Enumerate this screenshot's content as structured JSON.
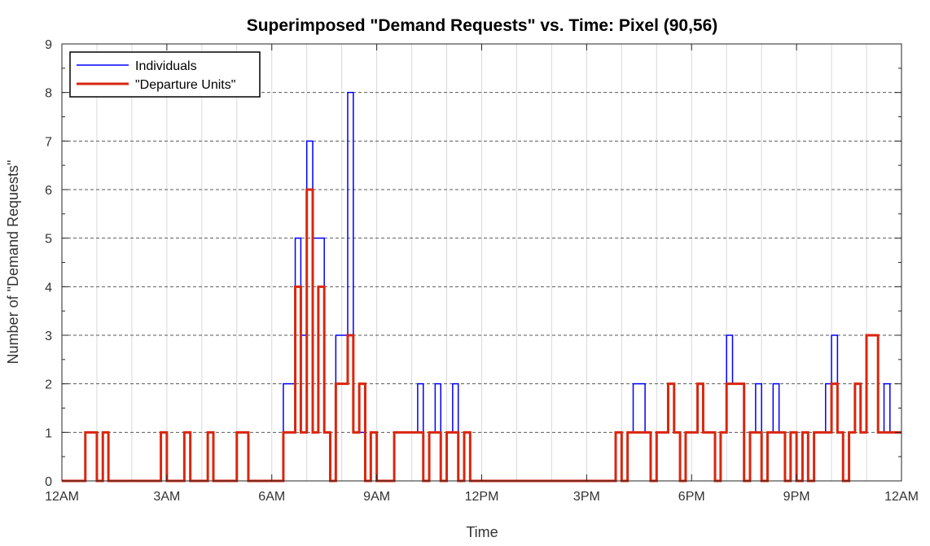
{
  "chart_data": {
    "type": "line",
    "title": "Superimposed \"Demand Requests\" vs. Time: Pixel (90,56)",
    "xlabel": "Time",
    "ylabel": "Number of \"Demand Requests\"",
    "x_tick_labels": [
      "12AM",
      "3AM",
      "6AM",
      "9AM",
      "12PM",
      "3PM",
      "6PM",
      "9PM",
      "12AM"
    ],
    "x_tick_hours": [
      0,
      3,
      6,
      9,
      12,
      15,
      18,
      21,
      24
    ],
    "xlim_hours": [
      0,
      24
    ],
    "ylim": [
      0,
      9
    ],
    "y_ticks": [
      0,
      1,
      2,
      3,
      4,
      5,
      6,
      7,
      8,
      9
    ],
    "grid": "on (solid vertical, dashed horizontal)",
    "legend_position": "top-left",
    "series": [
      {
        "name": "Individuals",
        "color": "#0000ff",
        "step_hours": [
          0,
          0.67,
          1.0,
          1.17,
          1.33,
          2.83,
          3.0,
          3.5,
          3.67,
          4.17,
          4.33,
          5.0,
          5.33,
          6.33,
          6.67,
          6.83,
          7.0,
          7.17,
          7.33,
          7.5,
          7.67,
          7.83,
          8.17,
          8.33,
          8.5,
          8.67,
          8.83,
          9.0,
          9.5,
          10.17,
          10.33,
          10.5,
          10.67,
          10.83,
          11.0,
          11.17,
          11.33,
          11.5,
          11.67,
          11.83,
          12.0,
          15.83,
          16.0,
          16.17,
          16.33,
          16.67,
          16.83,
          17.0,
          17.33,
          17.5,
          17.67,
          17.83,
          18.17,
          18.33,
          18.5,
          18.67,
          18.83,
          19.0,
          19.17,
          19.5,
          19.67,
          19.83,
          20.0,
          20.17,
          20.33,
          20.5,
          20.67,
          20.83,
          21.0,
          21.17,
          21.33,
          21.5,
          21.83,
          22.0,
          22.17,
          22.33,
          22.5,
          22.67,
          22.83,
          23.0,
          23.33,
          23.5,
          23.67,
          23.83,
          24.0
        ],
        "values": [
          0,
          1,
          0,
          1,
          0,
          1,
          0,
          1,
          0,
          1,
          0,
          1,
          0,
          2,
          5,
          3,
          7,
          5,
          5,
          1,
          0,
          3,
          8,
          1,
          1,
          0,
          1,
          0,
          1,
          2,
          0,
          1,
          2,
          0,
          1,
          2,
          0,
          1,
          0,
          0,
          0,
          1,
          0,
          1,
          2,
          1,
          0,
          1,
          2,
          1,
          0,
          1,
          2,
          1,
          1,
          0,
          1,
          3,
          2,
          0,
          1,
          2,
          0,
          1,
          2,
          1,
          0,
          1,
          0,
          1,
          0,
          1,
          2,
          3,
          1,
          0,
          1,
          2,
          1,
          3,
          1,
          2,
          1,
          1,
          1
        ]
      },
      {
        "name": "\"Departure Units\"",
        "color": "#d9260f",
        "step_hours": [
          0,
          0.67,
          1.0,
          1.17,
          1.33,
          2.83,
          3.0,
          3.5,
          3.67,
          4.17,
          4.33,
          5.0,
          5.33,
          6.33,
          6.67,
          6.83,
          7.0,
          7.17,
          7.33,
          7.5,
          7.67,
          7.83,
          8.17,
          8.33,
          8.5,
          8.67,
          8.83,
          9.0,
          9.5,
          10.17,
          10.33,
          10.5,
          10.67,
          10.83,
          11.0,
          11.17,
          11.33,
          11.5,
          11.67,
          11.83,
          12.0,
          15.83,
          16.0,
          16.17,
          16.33,
          16.67,
          16.83,
          17.0,
          17.33,
          17.5,
          17.67,
          17.83,
          18.17,
          18.33,
          18.5,
          18.67,
          18.83,
          19.0,
          19.17,
          19.5,
          19.67,
          19.83,
          20.0,
          20.17,
          20.33,
          20.5,
          20.67,
          20.83,
          21.0,
          21.17,
          21.33,
          21.5,
          21.83,
          22.0,
          22.17,
          22.33,
          22.5,
          22.67,
          22.83,
          23.0,
          23.33,
          23.5,
          23.67,
          23.83,
          24.0
        ],
        "values": [
          0,
          1,
          0,
          1,
          0,
          1,
          0,
          1,
          0,
          1,
          0,
          1,
          0,
          1,
          4,
          1,
          6,
          1,
          4,
          1,
          0,
          2,
          3,
          1,
          2,
          0,
          1,
          0,
          1,
          1,
          0,
          1,
          1,
          0,
          1,
          1,
          0,
          1,
          0,
          0,
          0,
          1,
          0,
          1,
          1,
          1,
          0,
          1,
          2,
          1,
          0,
          1,
          2,
          1,
          1,
          0,
          1,
          2,
          2,
          0,
          1,
          1,
          0,
          1,
          1,
          1,
          0,
          1,
          0,
          1,
          0,
          1,
          1,
          2,
          1,
          0,
          1,
          2,
          1,
          3,
          1,
          1,
          1,
          1,
          1
        ]
      }
    ]
  }
}
